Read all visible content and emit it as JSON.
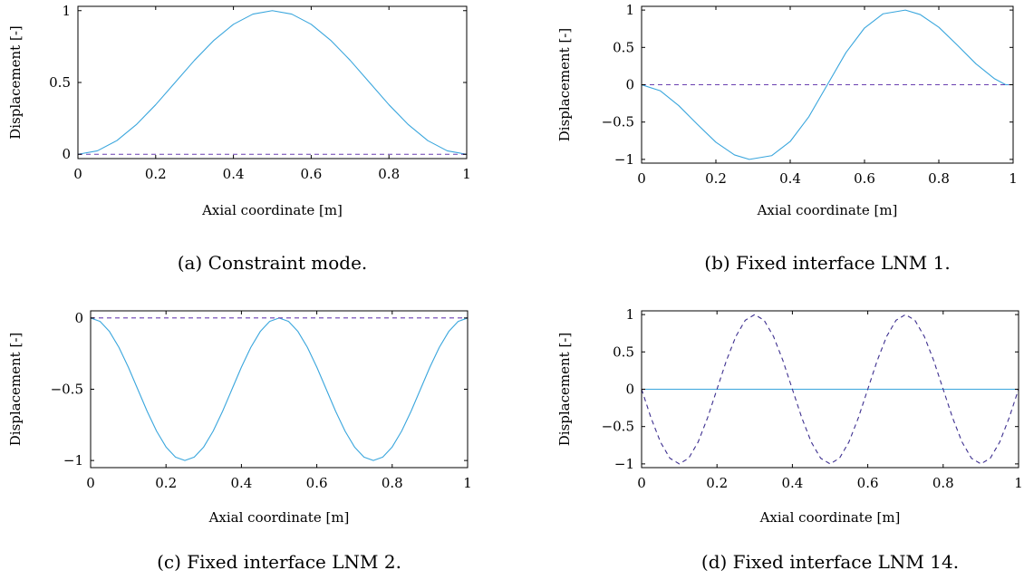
{
  "chart_data": [
    {
      "type": "line",
      "caption": "(a) Constraint mode.",
      "xlabel": "Axial coordinate [m]",
      "ylabel": "Displacement [-]",
      "xlim": [
        0,
        1
      ],
      "ylim": [
        -0.03,
        1.03
      ],
      "xticks": [
        0,
        0.2,
        0.4,
        0.6,
        0.8,
        1
      ],
      "xtick_labels": [
        "0",
        "0.2",
        "0.4",
        "0.6",
        "0.8",
        "1"
      ],
      "yticks": [
        0,
        0.5,
        1
      ],
      "ytick_labels": [
        "0",
        "0.5",
        "1"
      ],
      "series": [
        {
          "style": "solid",
          "color": "#3aa6dd",
          "x": [
            0,
            0.05,
            0.1,
            0.15,
            0.2,
            0.25,
            0.3,
            0.35,
            0.4,
            0.45,
            0.5,
            0.55,
            0.6,
            0.65,
            0.7,
            0.75,
            0.8,
            0.85,
            0.9,
            0.95,
            1
          ],
          "y": [
            0,
            0.024,
            0.095,
            0.206,
            0.345,
            0.5,
            0.655,
            0.794,
            0.905,
            0.976,
            1,
            0.976,
            0.905,
            0.794,
            0.655,
            0.5,
            0.345,
            0.206,
            0.095,
            0.024,
            0
          ]
        },
        {
          "style": "dashed",
          "color": "#6a3fb0",
          "x": [
            0,
            1
          ],
          "y": [
            0,
            0
          ]
        }
      ]
    },
    {
      "type": "line",
      "caption": "(b) Fixed interface LNM 1.",
      "xlabel": "Axial coordinate [m]",
      "ylabel": "Displacement [-]",
      "xlim": [
        0,
        1
      ],
      "ylim": [
        -1.05,
        1.05
      ],
      "xticks": [
        0,
        0.2,
        0.4,
        0.6,
        0.8,
        1
      ],
      "xtick_labels": [
        "0",
        "0.2",
        "0.4",
        "0.6",
        "0.8",
        "1"
      ],
      "yticks": [
        -1,
        -0.5,
        0,
        0.5,
        1
      ],
      "ytick_labels": [
        "−1",
        "−0.5",
        "0",
        "0.5",
        "1"
      ],
      "series": [
        {
          "style": "solid",
          "color": "#3aa6dd",
          "x": [
            0,
            0.05,
            0.1,
            0.15,
            0.2,
            0.25,
            0.29,
            0.35,
            0.4,
            0.45,
            0.5,
            0.55,
            0.6,
            0.65,
            0.71,
            0.75,
            0.8,
            0.85,
            0.9,
            0.95,
            0.98,
            1
          ],
          "y": [
            0,
            -0.08,
            -0.28,
            -0.53,
            -0.77,
            -0.94,
            -1,
            -0.95,
            -0.76,
            -0.43,
            0,
            0.43,
            0.76,
            0.95,
            1,
            0.94,
            0.77,
            0.53,
            0.28,
            0.08,
            0,
            0
          ]
        },
        {
          "style": "dashed",
          "color": "#6a3fb0",
          "x": [
            0,
            1
          ],
          "y": [
            0,
            0
          ]
        }
      ]
    },
    {
      "type": "line",
      "caption": "(c) Fixed interface LNM 2.",
      "xlabel": "Axial coordinate [m]",
      "ylabel": "Displacement [-]",
      "xlim": [
        0,
        1
      ],
      "ylim": [
        -1.05,
        0.05
      ],
      "xticks": [
        0,
        0.2,
        0.4,
        0.6,
        0.8,
        1
      ],
      "xtick_labels": [
        "0",
        "0.2",
        "0.4",
        "0.6",
        "0.8",
        "1"
      ],
      "yticks": [
        -1,
        -0.5,
        0
      ],
      "ytick_labels": [
        "−1",
        "−0.5",
        "0"
      ],
      "series": [
        {
          "style": "solid",
          "color": "#3aa6dd",
          "x": [
            0,
            0.025,
            0.05,
            0.075,
            0.1,
            0.125,
            0.15,
            0.175,
            0.2,
            0.225,
            0.25,
            0.275,
            0.3,
            0.325,
            0.35,
            0.375,
            0.4,
            0.425,
            0.45,
            0.475,
            0.5,
            0.525,
            0.55,
            0.575,
            0.6,
            0.625,
            0.65,
            0.675,
            0.7,
            0.725,
            0.75,
            0.775,
            0.8,
            0.825,
            0.85,
            0.875,
            0.9,
            0.925,
            0.95,
            0.975,
            1
          ],
          "y": [
            0,
            -0.024,
            -0.095,
            -0.206,
            -0.345,
            -0.5,
            -0.655,
            -0.794,
            -0.905,
            -0.976,
            -1,
            -0.976,
            -0.905,
            -0.794,
            -0.655,
            -0.5,
            -0.345,
            -0.206,
            -0.095,
            -0.024,
            0,
            -0.024,
            -0.095,
            -0.206,
            -0.345,
            -0.5,
            -0.655,
            -0.794,
            -0.905,
            -0.976,
            -1,
            -0.976,
            -0.905,
            -0.794,
            -0.655,
            -0.5,
            -0.345,
            -0.206,
            -0.095,
            -0.024,
            0
          ]
        },
        {
          "style": "dashed",
          "color": "#6a3fb0",
          "x": [
            0,
            1
          ],
          "y": [
            0,
            0
          ]
        }
      ]
    },
    {
      "type": "line",
      "caption": "(d) Fixed interface LNM 14.",
      "xlabel": "Axial coordinate [m]",
      "ylabel": "Displacement [-]",
      "xlim": [
        0,
        1
      ],
      "ylim": [
        -1.05,
        1.05
      ],
      "xticks": [
        0,
        0.2,
        0.4,
        0.6,
        0.8,
        1
      ],
      "xtick_labels": [
        "0",
        "0.2",
        "0.4",
        "0.6",
        "0.8",
        "1"
      ],
      "yticks": [
        -1,
        -0.5,
        0,
        0.5,
        1
      ],
      "ytick_labels": [
        "−1",
        "−0.5",
        "0",
        "0.5",
        "1"
      ],
      "series": [
        {
          "style": "solid",
          "color": "#3aa6dd",
          "x": [
            0,
            1
          ],
          "y": [
            0,
            0
          ]
        },
        {
          "style": "dashed",
          "color": "#3d2f8f",
          "x": [
            0,
            0.025,
            0.05,
            0.075,
            0.1,
            0.125,
            0.15,
            0.175,
            0.2,
            0.225,
            0.25,
            0.275,
            0.3,
            0.325,
            0.35,
            0.375,
            0.4,
            0.425,
            0.45,
            0.475,
            0.5,
            0.525,
            0.55,
            0.575,
            0.6,
            0.625,
            0.65,
            0.675,
            0.7,
            0.725,
            0.75,
            0.775,
            0.8,
            0.825,
            0.85,
            0.875,
            0.9,
            0.925,
            0.95,
            0.975,
            1
          ],
          "y": [
            0,
            -0.383,
            -0.707,
            -0.924,
            -1,
            -0.924,
            -0.707,
            -0.383,
            0,
            0.383,
            0.707,
            0.924,
            1,
            0.924,
            0.707,
            0.383,
            0,
            -0.383,
            -0.707,
            -0.924,
            -1,
            -0.924,
            -0.707,
            -0.383,
            0,
            0.383,
            0.707,
            0.924,
            1,
            0.924,
            0.707,
            0.383,
            0,
            -0.383,
            -0.707,
            -0.924,
            -1,
            -0.924,
            -0.707,
            -0.383,
            0
          ]
        }
      ]
    }
  ]
}
